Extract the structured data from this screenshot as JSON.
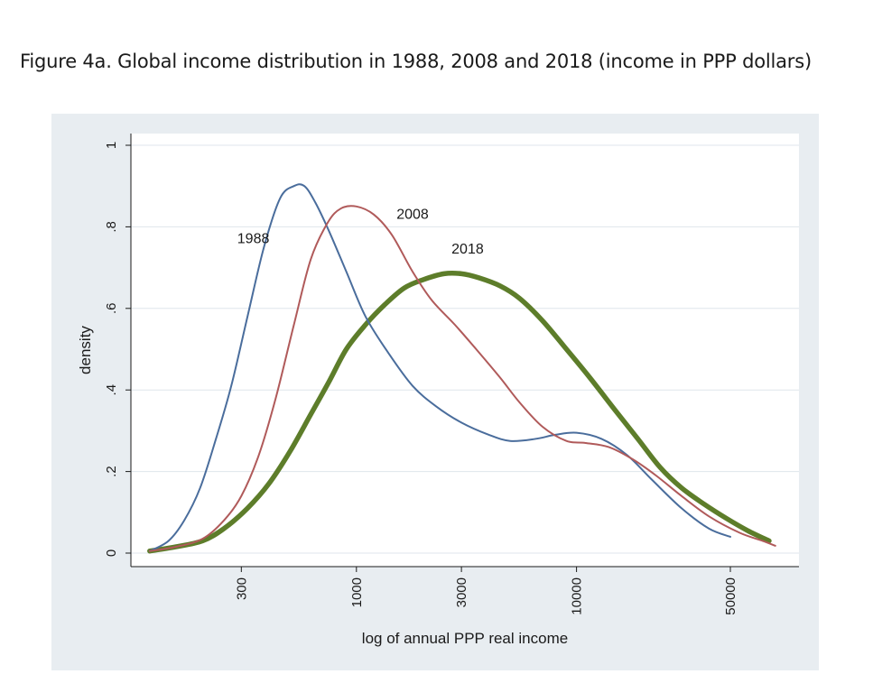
{
  "figure": {
    "title": "Figure 4a. Global income distribution in 1988, 2008 and 2018 (income in PPP dollars)"
  },
  "chart_data": {
    "type": "line",
    "xlabel": "log of annual PPP real income",
    "ylabel": "density",
    "x_scale": "log",
    "xlim": [
      100,
      80000
    ],
    "ylim": [
      0,
      1
    ],
    "grid": true,
    "legend": "none (series labelled directly on curves)",
    "x_ticks": [
      {
        "value": 300,
        "label": "300"
      },
      {
        "value": 1000,
        "label": "1000"
      },
      {
        "value": 3000,
        "label": "3000"
      },
      {
        "value": 10000,
        "label": "10000"
      },
      {
        "value": 50000,
        "label": "50000"
      }
    ],
    "y_ticks": [
      {
        "value": 0,
        "label": "0"
      },
      {
        "value": 0.2,
        "label": ".2"
      },
      {
        "value": 0.4,
        "label": ".4"
      },
      {
        "value": 0.6,
        "label": ".6"
      },
      {
        "value": 0.8,
        "label": ".8"
      },
      {
        "value": 1,
        "label": "1"
      }
    ],
    "series": [
      {
        "name": "1988",
        "color": "#4a6d9c",
        "stroke_weight": "thin",
        "label_anchor": {
          "x": 340,
          "y": 0.76
        },
        "points": [
          [
            115,
            0.005
          ],
          [
            140,
            0.03
          ],
          [
            165,
            0.08
          ],
          [
            195,
            0.16
          ],
          [
            230,
            0.28
          ],
          [
            270,
            0.41
          ],
          [
            320,
            0.58
          ],
          [
            380,
            0.75
          ],
          [
            450,
            0.87
          ],
          [
            520,
            0.9
          ],
          [
            580,
            0.9
          ],
          [
            650,
            0.86
          ],
          [
            750,
            0.79
          ],
          [
            900,
            0.69
          ],
          [
            1100,
            0.58
          ],
          [
            1400,
            0.49
          ],
          [
            1800,
            0.41
          ],
          [
            2300,
            0.36
          ],
          [
            3000,
            0.32
          ],
          [
            4000,
            0.29
          ],
          [
            5000,
            0.275
          ],
          [
            6500,
            0.28
          ],
          [
            8000,
            0.29
          ],
          [
            10000,
            0.295
          ],
          [
            13000,
            0.28
          ],
          [
            17000,
            0.24
          ],
          [
            22000,
            0.18
          ],
          [
            30000,
            0.11
          ],
          [
            40000,
            0.06
          ],
          [
            50000,
            0.04
          ]
        ]
      },
      {
        "name": "2008",
        "color": "#b05a5a",
        "stroke_weight": "thin",
        "label_anchor": {
          "x": 1800,
          "y": 0.82
        },
        "points": [
          [
            115,
            0.005
          ],
          [
            150,
            0.015
          ],
          [
            200,
            0.035
          ],
          [
            250,
            0.08
          ],
          [
            300,
            0.14
          ],
          [
            360,
            0.24
          ],
          [
            430,
            0.38
          ],
          [
            520,
            0.56
          ],
          [
            620,
            0.72
          ],
          [
            740,
            0.81
          ],
          [
            850,
            0.845
          ],
          [
            1000,
            0.85
          ],
          [
            1200,
            0.83
          ],
          [
            1450,
            0.78
          ],
          [
            1800,
            0.69
          ],
          [
            2200,
            0.62
          ],
          [
            2800,
            0.56
          ],
          [
            3500,
            0.5
          ],
          [
            4500,
            0.43
          ],
          [
            5500,
            0.37
          ],
          [
            7000,
            0.31
          ],
          [
            9000,
            0.275
          ],
          [
            11000,
            0.27
          ],
          [
            14000,
            0.26
          ],
          [
            18000,
            0.23
          ],
          [
            23000,
            0.19
          ],
          [
            30000,
            0.14
          ],
          [
            40000,
            0.09
          ],
          [
            55000,
            0.05
          ],
          [
            70000,
            0.03
          ],
          [
            80000,
            0.018
          ]
        ]
      },
      {
        "name": "2018",
        "color": "#5d7d2a",
        "stroke_weight": "thick",
        "label_anchor": {
          "x": 3200,
          "y": 0.735
        },
        "points": [
          [
            115,
            0.005
          ],
          [
            150,
            0.015
          ],
          [
            200,
            0.03
          ],
          [
            250,
            0.06
          ],
          [
            320,
            0.11
          ],
          [
            400,
            0.17
          ],
          [
            500,
            0.25
          ],
          [
            620,
            0.34
          ],
          [
            750,
            0.42
          ],
          [
            900,
            0.5
          ],
          [
            1100,
            0.56
          ],
          [
            1350,
            0.61
          ],
          [
            1650,
            0.65
          ],
          [
            2000,
            0.67
          ],
          [
            2500,
            0.685
          ],
          [
            3000,
            0.685
          ],
          [
            3600,
            0.675
          ],
          [
            4500,
            0.655
          ],
          [
            5500,
            0.625
          ],
          [
            7000,
            0.57
          ],
          [
            9000,
            0.5
          ],
          [
            11500,
            0.43
          ],
          [
            15000,
            0.35
          ],
          [
            19000,
            0.28
          ],
          [
            24000,
            0.21
          ],
          [
            30000,
            0.16
          ],
          [
            38000,
            0.12
          ],
          [
            48000,
            0.085
          ],
          [
            60000,
            0.055
          ],
          [
            75000,
            0.03
          ]
        ]
      }
    ]
  }
}
